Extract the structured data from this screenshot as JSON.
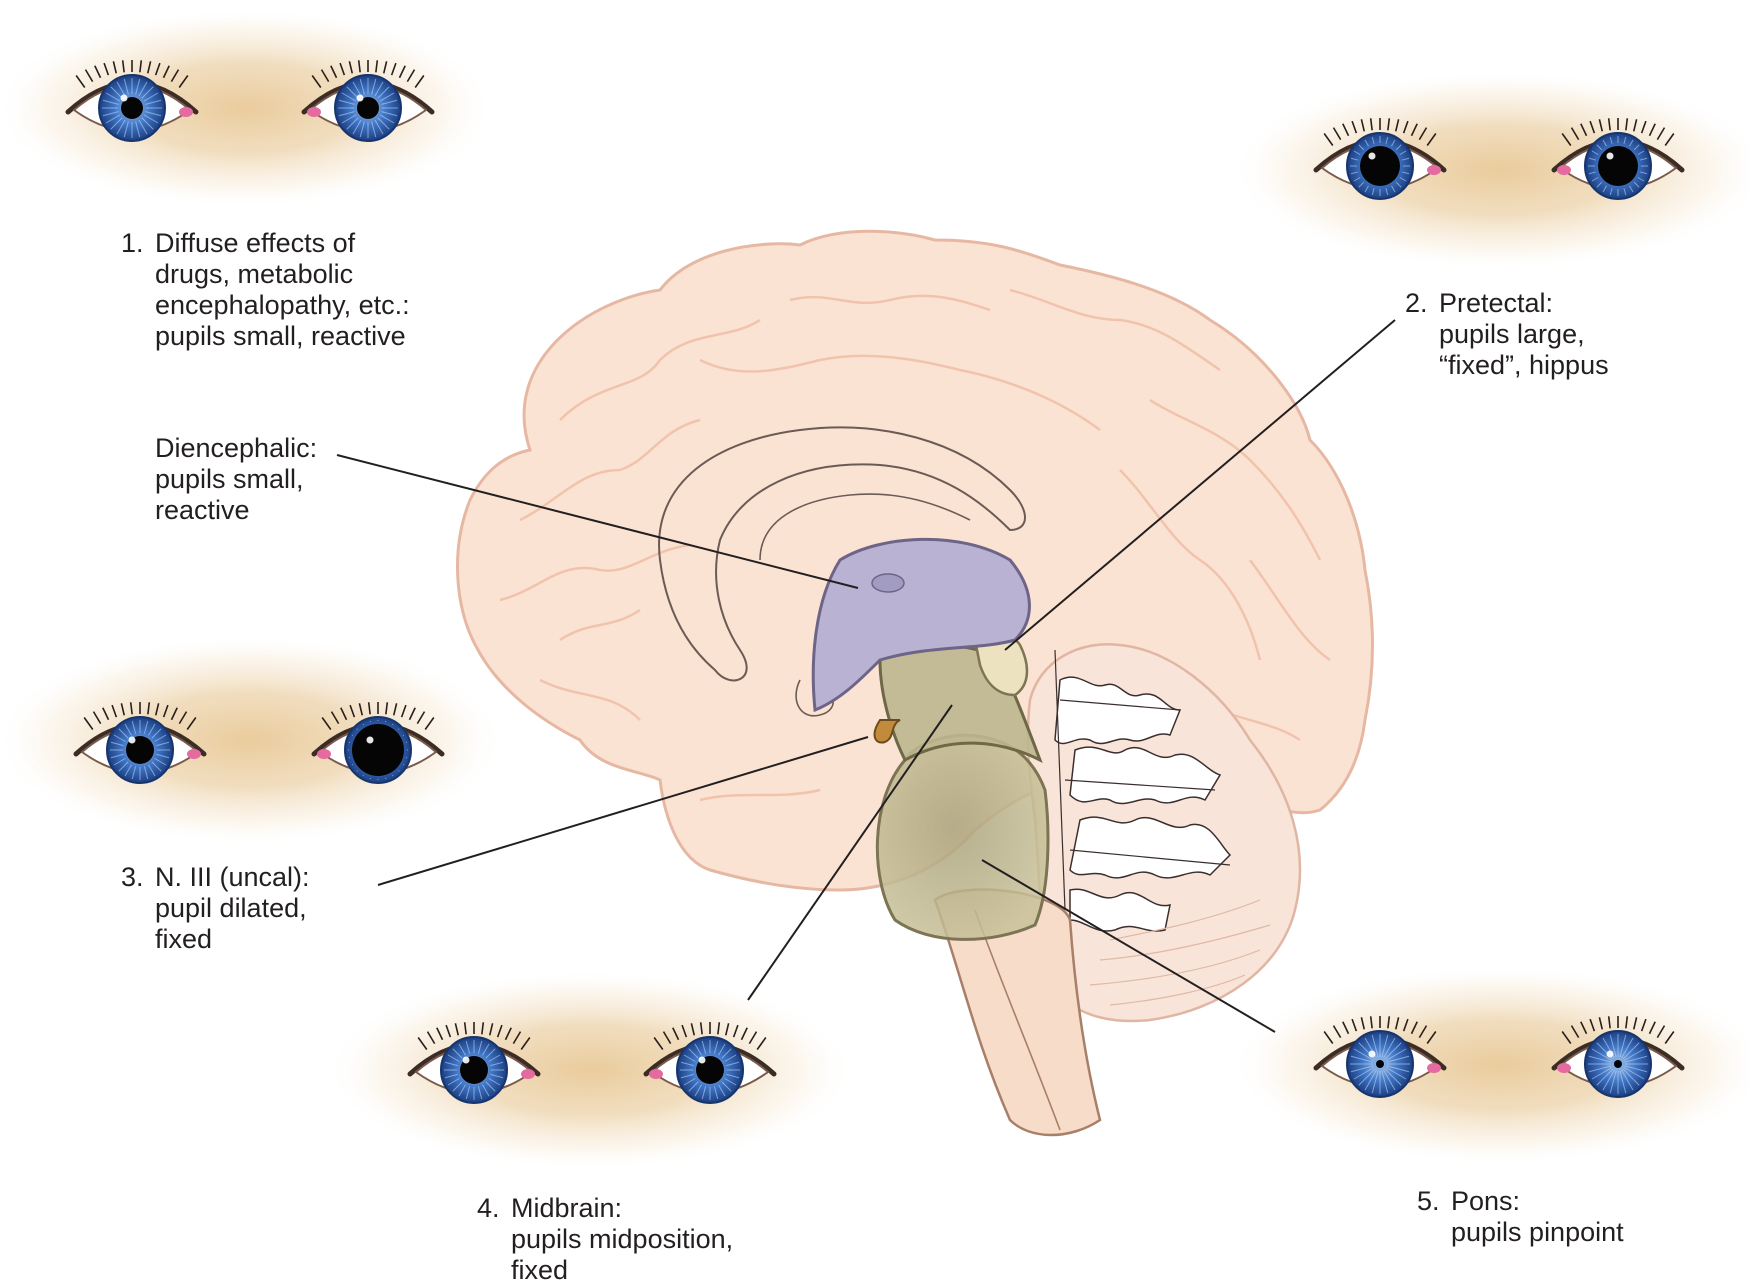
{
  "labels": {
    "diffuse": {
      "number": "1.",
      "lines": [
        "Diffuse effects of",
        "drugs, metabolic",
        "encephalopathy, etc.:",
        "pupils small, reactive"
      ]
    },
    "pretectal": {
      "number": "2.",
      "lines": [
        "Pretectal:",
        "pupils large,",
        "“fixed”, hippus"
      ]
    },
    "diencephalic": {
      "number": "",
      "lines": [
        "Diencephalic:",
        "pupils small,",
        "reactive"
      ]
    },
    "uncal": {
      "number": "3.",
      "lines": [
        "N. III (uncal):",
        "pupil dilated,",
        "fixed"
      ]
    },
    "midbrain": {
      "number": "4.",
      "lines": [
        "Midbrain:",
        "pupils midposition,",
        "fixed"
      ]
    },
    "pons": {
      "number": "5.",
      "lines": [
        "Pons:",
        "pupils pinpoint"
      ]
    }
  },
  "eye_pairs": {
    "diffuse": {
      "pupil_right_eye": "small",
      "pupil_left_eye": "small"
    },
    "pretectal": {
      "pupil_right_eye": "large",
      "pupil_left_eye": "large"
    },
    "uncal": {
      "pupil_right_eye": "normal",
      "pupil_left_eye": "dilated"
    },
    "midbrain": {
      "pupil_right_eye": "midposition",
      "pupil_left_eye": "midposition"
    },
    "pons": {
      "pupil_right_eye": "pinpoint",
      "pupil_left_eye": "pinpoint"
    }
  },
  "colors": {
    "cerebrum": "#fbe3d3",
    "cerebrum_outline": "#e8b6a0",
    "diencephalon": "#b9b2d2",
    "midbrain": "#b6b08a",
    "pons": "#b6ae83",
    "tectum": "#e6dcb8",
    "cerebellum": "#f6ddd0",
    "iris": "#3f74c4",
    "skin_glow": "#d6ab6e",
    "leader_line": "#231f20"
  }
}
